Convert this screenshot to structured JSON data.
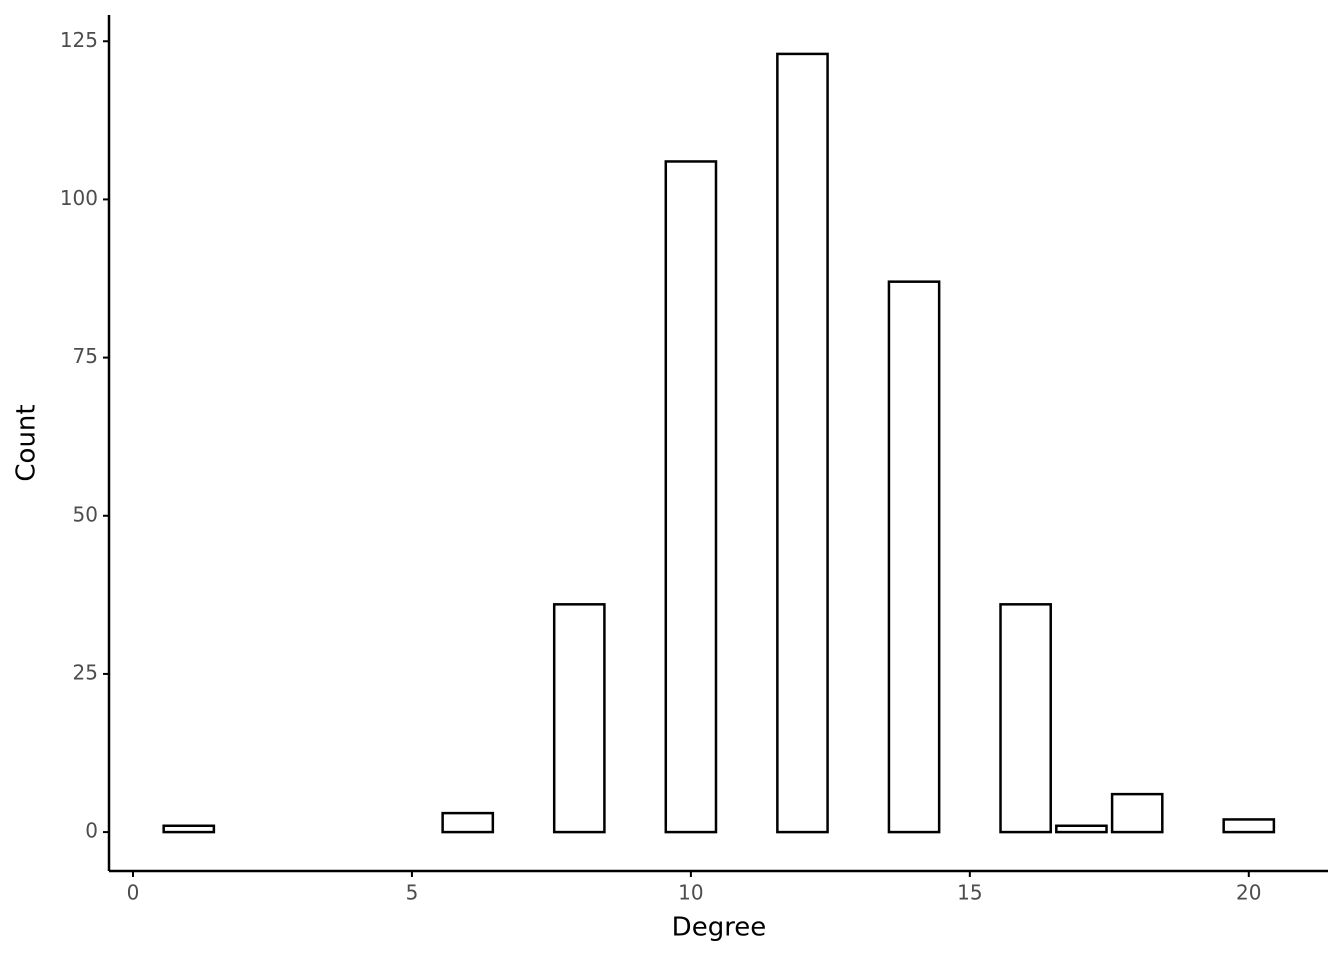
{
  "chart_data": {
    "type": "bar",
    "x_label": "Degree",
    "y_label": "Count",
    "x": [
      1,
      6,
      8,
      10,
      12,
      14,
      16,
      17,
      18,
      20
    ],
    "values": [
      1,
      3,
      36,
      106,
      123,
      87,
      36,
      1,
      6,
      2
    ],
    "color": "#ffffff",
    "edge_color": "#000000",
    "xlim": [
      -0.43,
      21.42
    ],
    "xticks": [
      0,
      5,
      10,
      15,
      20
    ],
    "ylim": [
      -6.15,
      129.15
    ],
    "yticks": [
      0,
      25,
      50,
      75,
      100,
      125
    ],
    "grid": false
  }
}
